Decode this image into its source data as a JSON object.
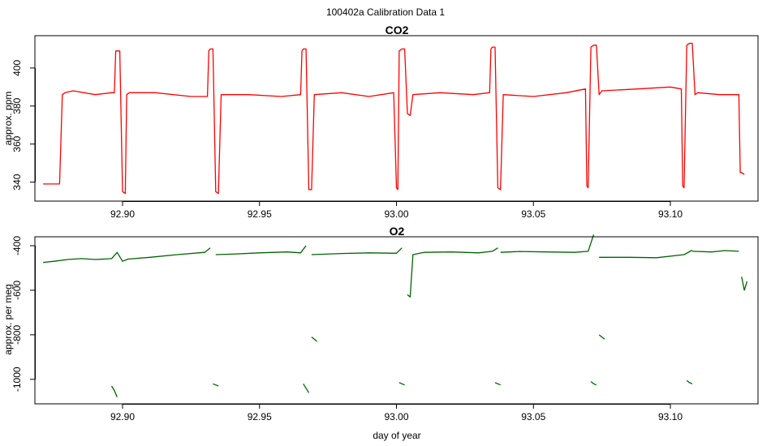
{
  "page": {
    "title": "100402a   Calibration Data 1"
  },
  "chart_data": [
    {
      "type": "line",
      "title": "CO2",
      "xlabel": "",
      "ylabel": "approx. ppm",
      "xlim": [
        92.868,
        93.132
      ],
      "ylim": [
        330,
        417
      ],
      "xticks": [
        92.9,
        92.95,
        93.0,
        93.05,
        93.1
      ],
      "xtick_labels": [
        "92.90",
        "92.95",
        "93.00",
        "93.05",
        "93.10"
      ],
      "yticks": [
        340,
        360,
        380,
        400
      ],
      "ytick_labels": [
        "340",
        "360",
        "380",
        "400"
      ],
      "grid": false,
      "color": "#ff0000",
      "series": [
        {
          "x": [
            92.871,
            92.876,
            92.877,
            92.878,
            92.879,
            92.882,
            92.89,
            92.896,
            92.897,
            92.8975,
            92.898,
            92.899,
            92.9,
            92.901,
            92.9015,
            92.9025,
            92.912,
            92.925,
            92.931,
            92.9315,
            92.932,
            92.933,
            92.934,
            92.935,
            92.936,
            92.946,
            92.958,
            92.965,
            92.9655,
            92.966,
            92.967,
            92.968,
            92.969,
            92.97,
            92.98,
            92.99,
            92.999,
            93.0,
            93.0005,
            93.001,
            93.002,
            93.003,
            93.004,
            93.005,
            93.006,
            93.016,
            93.028,
            93.034,
            93.0345,
            93.035,
            93.036,
            93.037,
            93.038,
            93.039,
            93.05,
            93.062,
            93.069,
            93.0695,
            93.07,
            93.071,
            93.072,
            93.073,
            93.074,
            93.075,
            93.088,
            93.1,
            93.104,
            93.1045,
            93.105,
            93.106,
            93.107,
            93.108,
            93.109,
            93.11,
            93.118,
            93.125,
            93.1255,
            93.126,
            93.127
          ],
          "y": [
            339,
            339,
            339,
            386,
            387,
            388,
            386,
            387,
            387,
            409,
            409,
            409,
            335,
            334,
            386,
            387,
            387,
            385,
            385,
            409,
            410,
            410,
            335,
            334,
            386,
            386,
            385,
            386,
            409,
            410,
            410,
            336,
            336,
            386,
            387,
            385,
            387,
            337,
            336,
            409,
            410,
            410,
            376,
            375,
            386,
            387,
            386,
            387,
            410,
            411,
            411,
            337,
            336,
            386,
            385,
            387,
            389,
            338,
            337,
            411,
            412,
            412,
            386,
            388,
            389,
            390,
            389,
            338,
            337,
            412,
            413,
            413,
            386,
            387,
            386,
            386,
            345,
            345,
            344
          ]
        }
      ]
    },
    {
      "type": "line",
      "title": "O2",
      "xlabel": "day of year",
      "ylabel": "approx. per meg",
      "xlim": [
        92.868,
        93.132
      ],
      "ylim": [
        -1110,
        -360
      ],
      "xticks": [
        92.9,
        92.95,
        93.0,
        93.05,
        93.1
      ],
      "xtick_labels": [
        "92.90",
        "92.95",
        "93.00",
        "93.05",
        "93.10"
      ],
      "yticks": [
        -1000,
        -800,
        -600,
        -400
      ],
      "ytick_labels": [
        "-1000",
        "-800",
        "-600",
        "-400"
      ],
      "grid": false,
      "color": "#006400",
      "series": [
        {
          "x": [
            92.871,
            92.875,
            92.88,
            92.885,
            92.89,
            92.896,
            92.898,
            92.9,
            92.902,
            92.91,
            92.92,
            92.93,
            92.932
          ],
          "y": [
            -475,
            -470,
            -462,
            -458,
            -462,
            -458,
            -430,
            -470,
            -460,
            -452,
            -440,
            -430,
            -410
          ]
        },
        {
          "x": [
            92.896,
            92.897,
            92.898
          ],
          "y": [
            -1030,
            -1050,
            -1080
          ]
        },
        {
          "x": [
            92.933,
            92.934,
            92.935
          ],
          "y": [
            -1020,
            -1025,
            -1030
          ]
        },
        {
          "x": [
            92.934,
            92.94,
            92.95,
            92.96,
            92.965,
            92.967
          ],
          "y": [
            -440,
            -438,
            -432,
            -428,
            -432,
            -400
          ]
        },
        {
          "x": [
            92.966,
            92.967,
            92.968
          ],
          "y": [
            -1020,
            -1040,
            -1060
          ]
        },
        {
          "x": [
            92.969,
            92.97,
            92.971
          ],
          "y": [
            -810,
            -820,
            -830
          ]
        },
        {
          "x": [
            92.969,
            92.98,
            92.99,
            93.0,
            93.002
          ],
          "y": [
            -440,
            -435,
            -432,
            -434,
            -410
          ]
        },
        {
          "x": [
            93.001,
            93.002,
            93.003
          ],
          "y": [
            -1015,
            -1020,
            -1025
          ]
        },
        {
          "x": [
            93.004,
            93.005,
            93.006,
            93.01,
            93.02,
            93.03,
            93.035,
            93.037
          ],
          "y": [
            -620,
            -630,
            -440,
            -430,
            -428,
            -432,
            -425,
            -410
          ]
        },
        {
          "x": [
            93.036,
            93.037,
            93.038
          ],
          "y": [
            -1015,
            -1020,
            -1025
          ]
        },
        {
          "x": [
            93.038,
            93.045,
            93.055,
            93.065,
            93.07,
            93.072
          ],
          "y": [
            -430,
            -426,
            -428,
            -430,
            -425,
            -350
          ]
        },
        {
          "x": [
            93.071,
            93.072,
            93.073
          ],
          "y": [
            -1010,
            -1020,
            -1025
          ]
        },
        {
          "x": [
            93.074,
            93.075,
            93.076
          ],
          "y": [
            -800,
            -810,
            -820
          ]
        },
        {
          "x": [
            93.074,
            93.085,
            93.095,
            93.105,
            93.108
          ],
          "y": [
            -452,
            -452,
            -454,
            -440,
            -420
          ]
        },
        {
          "x": [
            93.106,
            93.107,
            93.108
          ],
          "y": [
            -1005,
            -1015,
            -1020
          ]
        },
        {
          "x": [
            93.108,
            93.115,
            93.12,
            93.125
          ],
          "y": [
            -425,
            -428,
            -422,
            -425
          ]
        },
        {
          "x": [
            93.126,
            93.127,
            93.128
          ],
          "y": [
            -540,
            -600,
            -560
          ]
        }
      ]
    }
  ]
}
